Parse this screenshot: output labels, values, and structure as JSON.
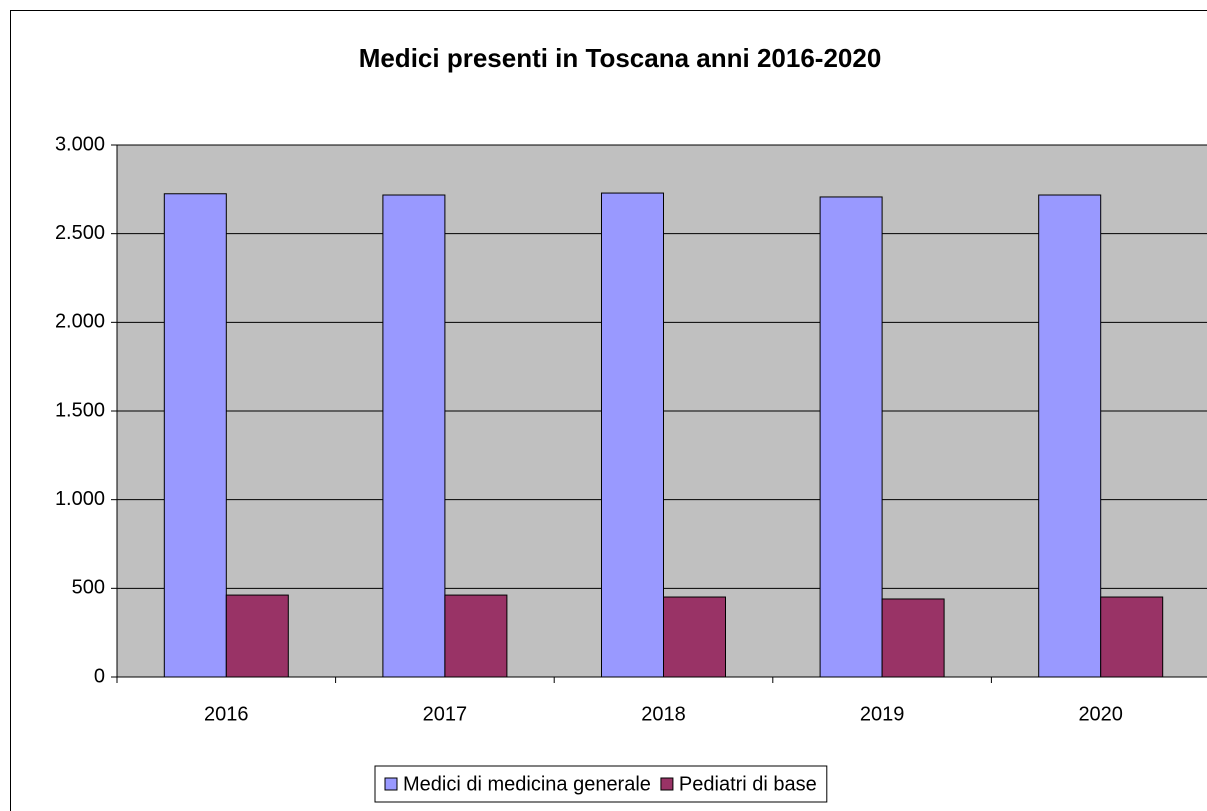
{
  "chart_data": {
    "type": "bar",
    "title": "Medici presenti in Toscana  anni 2016-2020",
    "categories": [
      "2016",
      "2017",
      "2018",
      "2019",
      "2020"
    ],
    "series": [
      {
        "name": "Medici di medicina generale",
        "color": "#9999ff",
        "values": [
          2725,
          2718,
          2729,
          2707,
          2718
        ]
      },
      {
        "name": "Pediatri di base",
        "color": "#993366",
        "values": [
          462,
          462,
          451,
          440,
          451
        ]
      }
    ],
    "ylim": [
      0,
      3000
    ],
    "yticks": [
      0,
      500,
      {
        "value": 1000,
        "label": "1.000"
      },
      {
        "value": 1500,
        "label": "1.500"
      },
      {
        "value": 2000,
        "label": "2.000"
      },
      {
        "value": 2500,
        "label": "2.500"
      },
      {
        "value": 3000,
        "label": "3.000"
      }
    ],
    "grid": true,
    "legend": "bottom",
    "plot_background": "#c0c0c0"
  }
}
